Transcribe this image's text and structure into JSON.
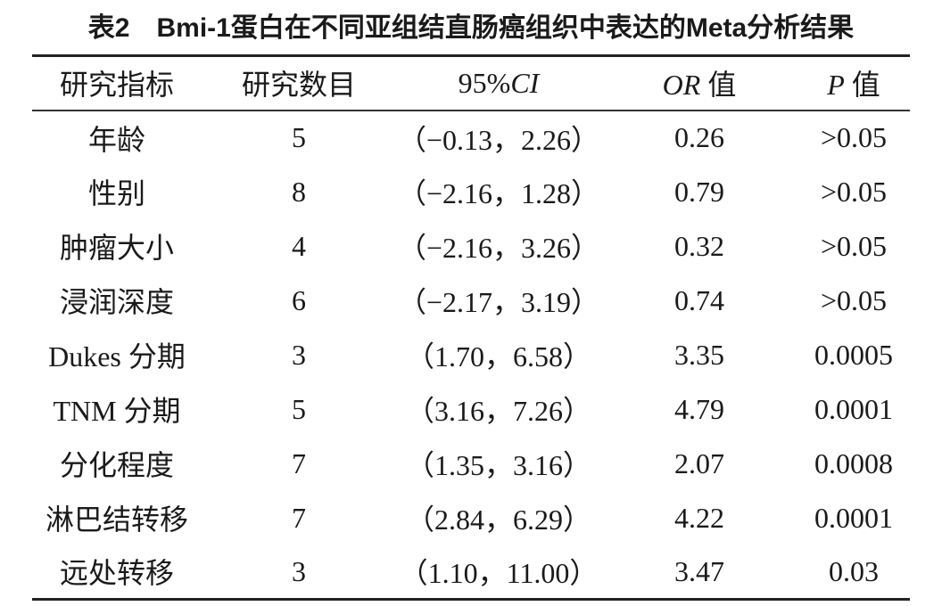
{
  "table": {
    "title": "表2　Bmi-1蛋白在不同亚组结直肠癌组织中表达的Meta分析结果",
    "header": [
      "研究指标",
      "研究数目",
      "95%CI",
      "OR 值",
      "P 值"
    ],
    "rows": [
      [
        "年龄",
        "5",
        "（−0.13，2.26）",
        "0.26",
        ">0.05"
      ],
      [
        "性别",
        "8",
        "（−2.16，1.28）",
        "0.79",
        ">0.05"
      ],
      [
        "肿瘤大小",
        "4",
        "（−2.16，3.26）",
        "0.32",
        ">0.05"
      ],
      [
        "浸润深度",
        "6",
        "（−2.17，3.19）",
        "0.74",
        ">0.05"
      ],
      [
        "Dukes 分期",
        "3",
        "（1.70，6.58）",
        "3.35",
        "0.0005"
      ],
      [
        "TNM 分期",
        "5",
        "（3.16，7.26）",
        "4.79",
        "0.0001"
      ],
      [
        "分化程度",
        "7",
        "（1.35，3.16）",
        "2.07",
        "0.0008"
      ],
      [
        "淋巴结转移",
        "7",
        "（2.84，6.29）",
        "4.22",
        "0.0001"
      ],
      [
        "远处转移",
        "3",
        "（1.10，11.00）",
        "3.47",
        "0.03"
      ]
    ]
  }
}
